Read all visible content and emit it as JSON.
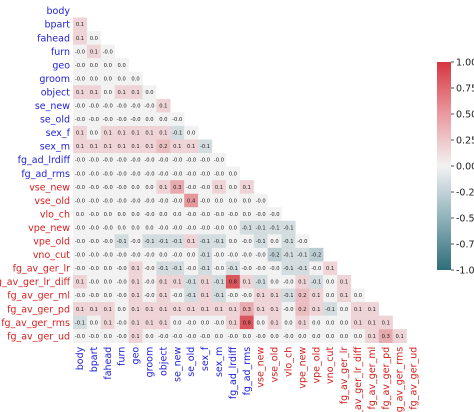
{
  "chart_data": {
    "type": "heatmap",
    "title": "",
    "xlabel": "",
    "ylabel": "",
    "labels": [
      {
        "name": "body",
        "color": "#1f1fd6"
      },
      {
        "name": "bpart",
        "color": "#1f1fd6"
      },
      {
        "name": "fahead",
        "color": "#1f1fd6"
      },
      {
        "name": "furn",
        "color": "#1f1fd6"
      },
      {
        "name": "geo",
        "color": "#1f1fd6"
      },
      {
        "name": "groom",
        "color": "#1f1fd6"
      },
      {
        "name": "object",
        "color": "#1f1fd6"
      },
      {
        "name": "se_new",
        "color": "#1f1fd6"
      },
      {
        "name": "se_old",
        "color": "#1f1fd6"
      },
      {
        "name": "sex_f",
        "color": "#1f1fd6"
      },
      {
        "name": "sex_m",
        "color": "#1f1fd6"
      },
      {
        "name": "fg_ad_lrdiff",
        "color": "#1f1fd6"
      },
      {
        "name": "fg_ad_rms",
        "color": "#1f1fd6"
      },
      {
        "name": "vse_new",
        "color": "#d62020"
      },
      {
        "name": "vse_old",
        "color": "#d62020"
      },
      {
        "name": "vlo_ch",
        "color": "#d62020"
      },
      {
        "name": "vpe_new",
        "color": "#d62020"
      },
      {
        "name": "vpe_old",
        "color": "#d62020"
      },
      {
        "name": "vno_cut",
        "color": "#d62020"
      },
      {
        "name": "fg_av_ger_lr",
        "color": "#d62020"
      },
      {
        "name": "fg_av_ger_lr_diff",
        "color": "#d62020"
      },
      {
        "name": "fg_av_ger_ml",
        "color": "#d62020"
      },
      {
        "name": "fg_av_ger_pd",
        "color": "#d62020"
      },
      {
        "name": "fg_av_ger_rms",
        "color": "#d62020"
      },
      {
        "name": "fg_av_ger_ud",
        "color": "#d62020"
      }
    ],
    "matrix": [
      [],
      [
        "0.1"
      ],
      [
        "0.1",
        "0.0"
      ],
      [
        "-0.0",
        "0.1",
        "-0.0"
      ],
      [
        "-0.0",
        "0.0",
        "0.0",
        "0.0"
      ],
      [
        "-0.0",
        "0.0",
        "0.0",
        "0.0",
        "0.0"
      ],
      [
        "0.1",
        "0.1",
        "0.0",
        "0.1",
        "0.1",
        "0.0"
      ],
      [
        "-0.0",
        "-0.0",
        "-0.0",
        "-0.0",
        "-0.0",
        "-0.0",
        "0.1"
      ],
      [
        "-0.0",
        "-0.0",
        "-0.0",
        "-0.0",
        "-0.0",
        "0.0",
        "0.0",
        "-0.0"
      ],
      [
        "0.1",
        "0.0",
        "0.1",
        "0.1",
        "0.1",
        "0.1",
        "0.1",
        "-0.1",
        "0.0"
      ],
      [
        "0.1",
        "0.1",
        "0.1",
        "0.1",
        "0.1",
        "0.1",
        "0.2",
        "0.1",
        "0.1",
        "-0.1"
      ],
      [
        "-0.0",
        "-0.0",
        "-0.0",
        "-0.0",
        "-0.0",
        "-0.0",
        "-0.0",
        "-0.0",
        "-0.0",
        "-0.0",
        "-0.0"
      ],
      [
        "-0.0",
        "-0.0",
        "-0.0",
        "-0.0",
        "-0.0",
        "-0.0",
        "-0.0",
        "-0.0",
        "-0.0",
        "-0.0",
        "-0.0",
        "0.0"
      ],
      [
        "-0.0",
        "-0.0",
        "-0.0",
        "-0.0",
        "0.0",
        "0.0",
        "0.1",
        "0.3",
        "-0.0",
        "-0.0",
        "0.1",
        "0.0",
        "0.1"
      ],
      [
        "-0.0",
        "-0.0",
        "-0.0",
        "-0.0",
        "-0.0",
        "-0.0",
        "-0.0",
        "-0.0",
        "0.4",
        "-0.0",
        "0.0",
        "0.0",
        "0.0",
        "-0.0"
      ],
      [
        "0.0",
        "-0.0",
        "0.0",
        "0.0",
        "0.0",
        "-0.0",
        "0.0",
        "0.0",
        "-0.0",
        "-0.0",
        "-0.0",
        "-0.0",
        "0.0",
        "-0.0",
        "-0.0"
      ],
      [
        "-0.0",
        "-0.0",
        "-0.0",
        "0.0",
        "0.0",
        "0.0",
        "-0.0",
        "-0.0",
        "-0.0",
        "-0.0",
        "-0.0",
        "0.0",
        "-0.1",
        "-0.1",
        "-0.1",
        "-0.1"
      ],
      [
        "-0.0",
        "-0.0",
        "-0.0",
        "-0.1",
        "-0.0",
        "-0.1",
        "-0.1",
        "-0.1",
        "0.1",
        "-0.1",
        "-0.1",
        "0.0",
        "-0.0",
        "-0.1",
        "0.0",
        "-0.1",
        "-0.0"
      ],
      [
        "-0.0",
        "-0.0",
        "-0.0",
        "-0.0",
        "-0.0",
        "-0.0",
        "0.0",
        "-0.0",
        "0.0",
        "-0.1",
        "-0.0",
        "-0.0",
        "-0.0",
        "-0.0",
        "-0.2",
        "-0.1",
        "-0.1",
        "-0.2"
      ],
      [
        "-0.0",
        "-0.0",
        "0.0",
        "-0.0",
        "0.1",
        "-0.0",
        "-0.1",
        "-0.1",
        "-0.0",
        "-0.1",
        "-0.0",
        "-0.1",
        "-0.0",
        "-0.0",
        "-0.0",
        "-0.1",
        "-0.1",
        "-0.0",
        "0.1"
      ],
      [
        "0.1",
        "-0.0",
        "0.0",
        "-0.0",
        "0.1",
        "-0.0",
        "0.1",
        "0.1",
        "-0.1",
        "0.1",
        "-0.1",
        "0.8",
        "0.1",
        "-0.1",
        "0.0",
        "-0.0",
        "0.1",
        "-0.1",
        "0.0",
        "0.1"
      ],
      [
        "-0.0",
        "-0.0",
        "0.0",
        "-0.0",
        "0.1",
        "-0.0",
        "0.1",
        "-0.0",
        "-0.1",
        "0.1",
        "-0.1",
        "-0.0",
        "-0.0",
        "0.1",
        "0.1",
        "-0.1",
        "0.2",
        "0.1",
        "0.0",
        "0.1",
        "0.0"
      ],
      [
        "0.1",
        "0.1",
        "0.1",
        "0.0",
        "0.1",
        "0.1",
        "0.1",
        "0.1",
        "0.1",
        "0.1",
        "0.1",
        "0.1",
        "0.3",
        "0.1",
        "0.1",
        "-0.0",
        "0.2",
        "0.1",
        "-0.1",
        "0.0",
        "0.1",
        "0.1"
      ],
      [
        "-0.1",
        "0.0",
        "0.1",
        "-0.0",
        "0.1",
        "0.1",
        "0.1",
        "0.0",
        "-0.0",
        "0.0",
        "-0.0",
        "0.1",
        "0.8",
        "0.0",
        "0.1",
        "0.0",
        "0.1",
        "0.0",
        "0.0",
        "0.0",
        "0.1",
        "0.1",
        "0.1"
      ],
      [
        "-0.0",
        "-0.0",
        "0.0",
        "-0.0",
        "0.1",
        "0.0",
        "-0.0",
        "-0.0",
        "-0.0",
        "-0.0",
        "0.0",
        "-0.0",
        "0.0",
        "-0.0",
        "0.0",
        "-0.0",
        "0.0",
        "0.0",
        "0.0",
        "0.0",
        "0.0",
        "0.1",
        "0.3",
        "0.1"
      ]
    ],
    "colorbar": {
      "vmin": -1.0,
      "vmax": 1.0,
      "ticks": [
        "1.00",
        "0.75",
        "0.50",
        "0.25",
        "0.00",
        "-0.25",
        "-0.50",
        "-0.75",
        "-1.00"
      ],
      "colors": {
        "negative": "#2f6d7b",
        "center": "#f2f2f2",
        "positive": "#d6363f"
      }
    },
    "grid": false
  }
}
